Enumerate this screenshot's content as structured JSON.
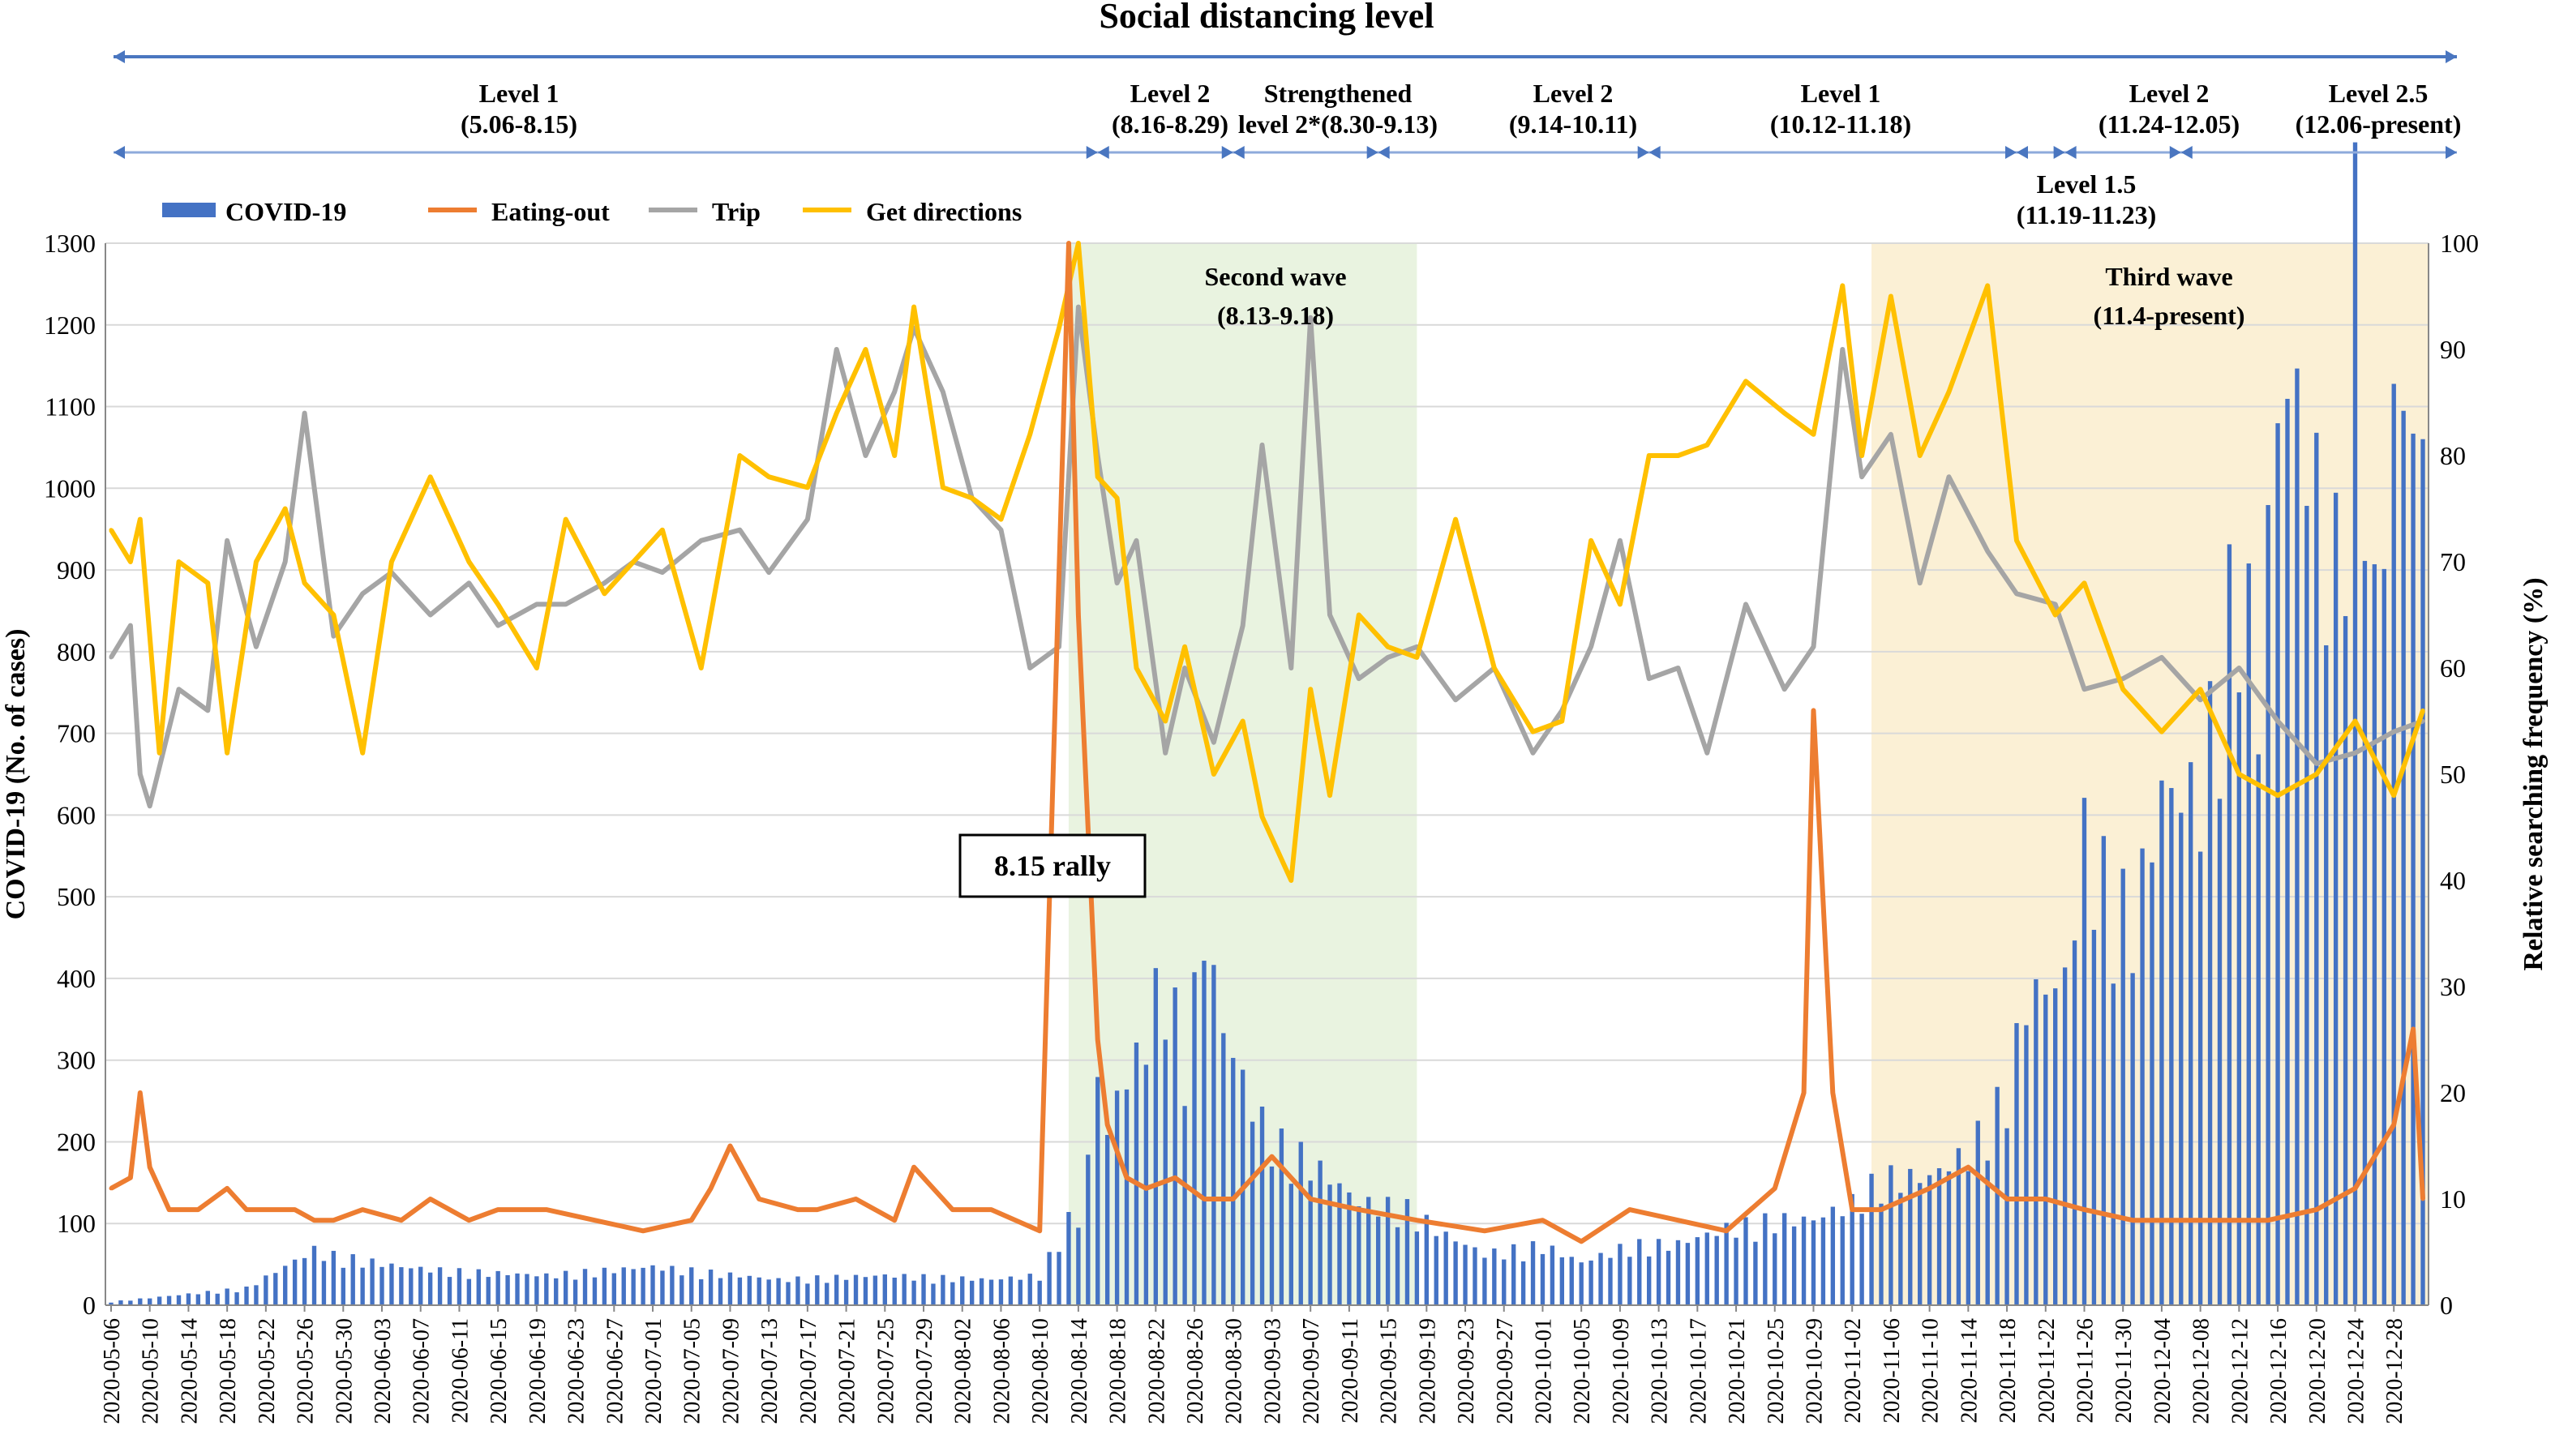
{
  "chart_data": {
    "type": "bar+line",
    "title": "Social distancing level",
    "ylabel_left": "COVID-19 (No. of cases)",
    "ylabel_right": "Relative searching frequency (%)",
    "ylim_left": [
      0,
      1300
    ],
    "ylim_right": [
      0,
      100
    ],
    "y_left_ticks": [
      "0",
      "100",
      "200",
      "300",
      "400",
      "500",
      "600",
      "700",
      "800",
      "900",
      "1000",
      "1100",
      "1200",
      "1300"
    ],
    "y_right_ticks": [
      "0",
      "10",
      "20",
      "30",
      "40",
      "50",
      "60",
      "70",
      "80",
      "90",
      "100"
    ],
    "x_ticks": [
      "2020-05-06",
      "2020-05-10",
      "2020-05-14",
      "2020-05-18",
      "2020-05-22",
      "2020-05-26",
      "2020-05-30",
      "2020-06-03",
      "2020-06-07",
      "2020-06-11",
      "2020-06-15",
      "2020-06-19",
      "2020-06-23",
      "2020-06-27",
      "2020-07-01",
      "2020-07-05",
      "2020-07-09",
      "2020-07-13",
      "2020-07-17",
      "2020-07-21",
      "2020-07-25",
      "2020-07-29",
      "2020-08-02",
      "2020-08-06",
      "2020-08-10",
      "2020-08-14",
      "2020-08-18",
      "2020-08-22",
      "2020-08-26",
      "2020-08-30",
      "2020-09-03",
      "2020-09-07",
      "2020-09-11",
      "2020-09-15",
      "2020-09-19",
      "2020-09-23",
      "2020-09-27",
      "2020-10-01",
      "2020-10-05",
      "2020-10-09",
      "2020-10-13",
      "2020-10-17",
      "2020-10-21",
      "2020-10-25",
      "2020-10-29",
      "2020-11-02",
      "2020-11-06",
      "2020-11-10",
      "2020-11-14",
      "2020-11-18",
      "2020-11-22",
      "2020-11-26",
      "2020-11-30",
      "2020-12-04",
      "2020-12-08",
      "2020-12-12",
      "2020-12-16",
      "2020-12-20",
      "2020-12-24",
      "2020-12-28"
    ],
    "legend": [
      {
        "name": "COVID-19",
        "color": "#4472c4",
        "kind": "bar"
      },
      {
        "name": "Eating-out",
        "color": "#ed7d31",
        "kind": "line"
      },
      {
        "name": "Trip",
        "color": "#a5a5a5",
        "kind": "line"
      },
      {
        "name": "Get directions",
        "color": "#ffc000",
        "kind": "line"
      }
    ],
    "x_start_date": "2020-05-06",
    "series": [
      {
        "name": "COVID-19",
        "axis": "left",
        "dates": [
          "2020-05-06",
          "2020-05-20",
          "2020-05-27",
          "2020-05-28",
          "2020-06-05",
          "2020-06-10",
          "2020-06-20",
          "2020-07-01",
          "2020-07-14",
          "2020-07-25",
          "2020-08-05",
          "2020-08-10",
          "2020-08-13",
          "2020-08-14",
          "2020-08-15",
          "2020-08-16",
          "2020-08-17",
          "2020-08-18",
          "2020-08-20",
          "2020-08-23",
          "2020-08-25",
          "2020-08-27",
          "2020-08-29",
          "2020-09-01",
          "2020-09-03",
          "2020-09-07",
          "2020-09-12",
          "2020-09-17",
          "2020-09-21",
          "2020-09-25",
          "2020-10-01",
          "2020-10-05",
          "2020-10-10",
          "2020-10-15",
          "2020-10-20",
          "2020-10-25",
          "2020-10-29",
          "2020-11-02",
          "2020-11-05",
          "2020-11-10",
          "2020-11-14",
          "2020-11-18",
          "2020-11-20",
          "2020-11-24",
          "2020-11-26",
          "2020-11-28",
          "2020-12-01",
          "2020-12-04",
          "2020-12-08",
          "2020-12-12",
          "2020-12-14",
          "2020-12-16",
          "2020-12-18",
          "2020-12-20",
          "2020-12-22",
          "2020-12-24",
          "2020-12-26",
          "2020-12-28",
          "2020-12-30",
          "2020-12-31"
        ],
        "values": [
          4,
          20,
          65,
          60,
          45,
          40,
          35,
          45,
          30,
          35,
          30,
          35,
          100,
          103,
          166,
          279,
          197,
          246,
          288,
          397,
          280,
          441,
          323,
          235,
          195,
          168,
          121,
          113,
          82,
          60,
          70,
          50,
          70,
          72,
          90,
          100,
          100,
          120,
          150,
          150,
          180,
          250,
          360,
          380,
          550,
          500,
          450,
          600,
          600,
          880,
          718,
          1062,
          1062,
          950,
          867,
          1241,
          807,
          1045,
          1050,
          963
        ]
      },
      {
        "name": "Eating-out",
        "axis": "right",
        "dates": [
          "2020-05-06",
          "2020-05-08",
          "2020-05-09",
          "2020-05-10",
          "2020-05-12",
          "2020-05-15",
          "2020-05-18",
          "2020-05-20",
          "2020-05-22",
          "2020-05-25",
          "2020-05-27",
          "2020-05-29",
          "2020-06-01",
          "2020-06-05",
          "2020-06-08",
          "2020-06-12",
          "2020-06-15",
          "2020-06-20",
          "2020-06-25",
          "2020-06-30",
          "2020-07-05",
          "2020-07-07",
          "2020-07-09",
          "2020-07-12",
          "2020-07-16",
          "2020-07-18",
          "2020-07-22",
          "2020-07-26",
          "2020-07-28",
          "2020-08-01",
          "2020-08-05",
          "2020-08-10",
          "2020-08-13",
          "2020-08-14",
          "2020-08-15",
          "2020-08-16",
          "2020-08-17",
          "2020-08-19",
          "2020-08-21",
          "2020-08-24",
          "2020-08-27",
          "2020-08-30",
          "2020-09-03",
          "2020-09-07",
          "2020-09-12",
          "2020-09-18",
          "2020-09-25",
          "2020-10-01",
          "2020-10-05",
          "2020-10-10",
          "2020-10-15",
          "2020-10-20",
          "2020-10-25",
          "2020-10-28",
          "2020-10-29",
          "2020-10-31",
          "2020-11-02",
          "2020-11-05",
          "2020-11-10",
          "2020-11-14",
          "2020-11-18",
          "2020-11-22",
          "2020-11-26",
          "2020-12-01",
          "2020-12-05",
          "2020-12-10",
          "2020-12-15",
          "2020-12-20",
          "2020-12-24",
          "2020-12-26",
          "2020-12-28",
          "2020-12-30",
          "2020-12-31"
        ],
        "values": [
          11,
          12,
          20,
          13,
          9,
          9,
          11,
          9,
          9,
          9,
          8,
          8,
          9,
          8,
          10,
          8,
          9,
          9,
          8,
          7,
          8,
          11,
          15,
          10,
          9,
          9,
          10,
          8,
          13,
          9,
          9,
          7,
          100,
          65,
          45,
          25,
          17,
          12,
          11,
          12,
          10,
          10,
          14,
          10,
          9,
          8,
          7,
          8,
          6,
          9,
          8,
          7,
          11,
          20,
          56,
          20,
          9,
          9,
          11,
          13,
          10,
          10,
          9,
          8,
          8,
          8,
          8,
          9,
          11,
          14,
          17,
          26,
          10
        ]
      },
      {
        "name": "Trip",
        "axis": "right",
        "dates": [
          "2020-05-06",
          "2020-05-08",
          "2020-05-09",
          "2020-05-10",
          "2020-05-13",
          "2020-05-16",
          "2020-05-18",
          "2020-05-21",
          "2020-05-24",
          "2020-05-26",
          "2020-05-29",
          "2020-06-01",
          "2020-06-04",
          "2020-06-08",
          "2020-06-12",
          "2020-06-15",
          "2020-06-19",
          "2020-06-22",
          "2020-06-26",
          "2020-06-29",
          "2020-07-02",
          "2020-07-06",
          "2020-07-10",
          "2020-07-13",
          "2020-07-17",
          "2020-07-20",
          "2020-07-23",
          "2020-07-26",
          "2020-07-28",
          "2020-07-31",
          "2020-08-03",
          "2020-08-06",
          "2020-08-09",
          "2020-08-12",
          "2020-08-14",
          "2020-08-16",
          "2020-08-18",
          "2020-08-20",
          "2020-08-23",
          "2020-08-25",
          "2020-08-28",
          "2020-08-31",
          "2020-09-02",
          "2020-09-05",
          "2020-09-07",
          "2020-09-09",
          "2020-09-12",
          "2020-09-15",
          "2020-09-18",
          "2020-09-22",
          "2020-09-26",
          "2020-09-30",
          "2020-10-03",
          "2020-10-06",
          "2020-10-09",
          "2020-10-12",
          "2020-10-15",
          "2020-10-18",
          "2020-10-22",
          "2020-10-26",
          "2020-10-29",
          "2020-11-01",
          "2020-11-03",
          "2020-11-06",
          "2020-11-09",
          "2020-11-12",
          "2020-11-16",
          "2020-11-19",
          "2020-11-23",
          "2020-11-26",
          "2020-11-30",
          "2020-12-04",
          "2020-12-08",
          "2020-12-12",
          "2020-12-16",
          "2020-12-20",
          "2020-12-24",
          "2020-12-28",
          "2020-12-31"
        ],
        "values": [
          61,
          64,
          50,
          47,
          58,
          56,
          72,
          62,
          70,
          84,
          63,
          67,
          69,
          65,
          68,
          64,
          66,
          66,
          68,
          70,
          69,
          72,
          73,
          69,
          74,
          90,
          80,
          86,
          92,
          86,
          76,
          73,
          60,
          62,
          94,
          80,
          68,
          72,
          52,
          60,
          53,
          64,
          81,
          60,
          93,
          65,
          59,
          61,
          62,
          57,
          60,
          52,
          56,
          62,
          72,
          59,
          60,
          52,
          66,
          58,
          62,
          90,
          78,
          82,
          68,
          78,
          71,
          67,
          66,
          58,
          59,
          61,
          57,
          60,
          55,
          51,
          52,
          54,
          55
        ]
      },
      {
        "name": "Get directions",
        "axis": "right",
        "dates": [
          "2020-05-06",
          "2020-05-08",
          "2020-05-09",
          "2020-05-11",
          "2020-05-13",
          "2020-05-16",
          "2020-05-18",
          "2020-05-21",
          "2020-05-24",
          "2020-05-26",
          "2020-05-29",
          "2020-06-01",
          "2020-06-04",
          "2020-06-08",
          "2020-06-12",
          "2020-06-15",
          "2020-06-19",
          "2020-06-22",
          "2020-06-26",
          "2020-06-29",
          "2020-07-02",
          "2020-07-06",
          "2020-07-10",
          "2020-07-13",
          "2020-07-17",
          "2020-07-20",
          "2020-07-23",
          "2020-07-26",
          "2020-07-28",
          "2020-07-31",
          "2020-08-03",
          "2020-08-06",
          "2020-08-09",
          "2020-08-12",
          "2020-08-14",
          "2020-08-16",
          "2020-08-18",
          "2020-08-20",
          "2020-08-23",
          "2020-08-25",
          "2020-08-28",
          "2020-08-31",
          "2020-09-02",
          "2020-09-05",
          "2020-09-07",
          "2020-09-09",
          "2020-09-12",
          "2020-09-15",
          "2020-09-18",
          "2020-09-22",
          "2020-09-26",
          "2020-09-30",
          "2020-10-03",
          "2020-10-06",
          "2020-10-09",
          "2020-10-12",
          "2020-10-15",
          "2020-10-18",
          "2020-10-22",
          "2020-10-26",
          "2020-10-29",
          "2020-11-01",
          "2020-11-03",
          "2020-11-06",
          "2020-11-09",
          "2020-11-12",
          "2020-11-16",
          "2020-11-19",
          "2020-11-23",
          "2020-11-26",
          "2020-11-30",
          "2020-12-04",
          "2020-12-08",
          "2020-12-12",
          "2020-12-16",
          "2020-12-20",
          "2020-12-24",
          "2020-12-28",
          "2020-12-31"
        ],
        "values": [
          73,
          70,
          74,
          52,
          70,
          68,
          52,
          70,
          75,
          68,
          65,
          52,
          70,
          78,
          70,
          66,
          60,
          74,
          67,
          70,
          73,
          60,
          80,
          78,
          77,
          84,
          90,
          80,
          94,
          77,
          76,
          74,
          82,
          92,
          100,
          78,
          76,
          60,
          55,
          62,
          50,
          55,
          46,
          40,
          58,
          48,
          65,
          62,
          61,
          74,
          60,
          54,
          55,
          72,
          66,
          80,
          80,
          81,
          87,
          84,
          82,
          96,
          80,
          95,
          80,
          86,
          96,
          72,
          65,
          68,
          58,
          54,
          58,
          50,
          48,
          50,
          55,
          48,
          56
        ]
      }
    ],
    "levels_row1": [
      {
        "name": "Level 1",
        "range": "(5.06-8.15)"
      },
      {
        "name": "Level 2",
        "range": "(8.16-8.29)"
      },
      {
        "name": "Strengthened",
        "range": "level 2*(8.30-9.13)"
      },
      {
        "name": "Level 2",
        "range": "(9.14-10.11)"
      },
      {
        "name": "Level 1",
        "range": "(10.12-11.18)"
      },
      {
        "name": "Level 2",
        "range": "(11.24-12.05)"
      },
      {
        "name": "Level 2.5",
        "range": "(12.06-present)"
      }
    ],
    "level_1_5": {
      "name": "Level 1.5",
      "range": "(11.19-11.23)"
    },
    "annotations": {
      "rally": "8.15 rally",
      "second_wave_title": "Second wave",
      "second_wave_range": "(8.13-9.18)",
      "third_wave_title": "Third wave",
      "third_wave_range": "(11.4-present)"
    },
    "colors": {
      "covid": "#4472c4",
      "eating": "#ed7d31",
      "trip": "#a5a5a5",
      "directions": "#ffc000",
      "arrow": "#4a76c0",
      "second_wave_bg": "#e9f3e0",
      "third_wave_bg": "#fbf0d5"
    }
  }
}
